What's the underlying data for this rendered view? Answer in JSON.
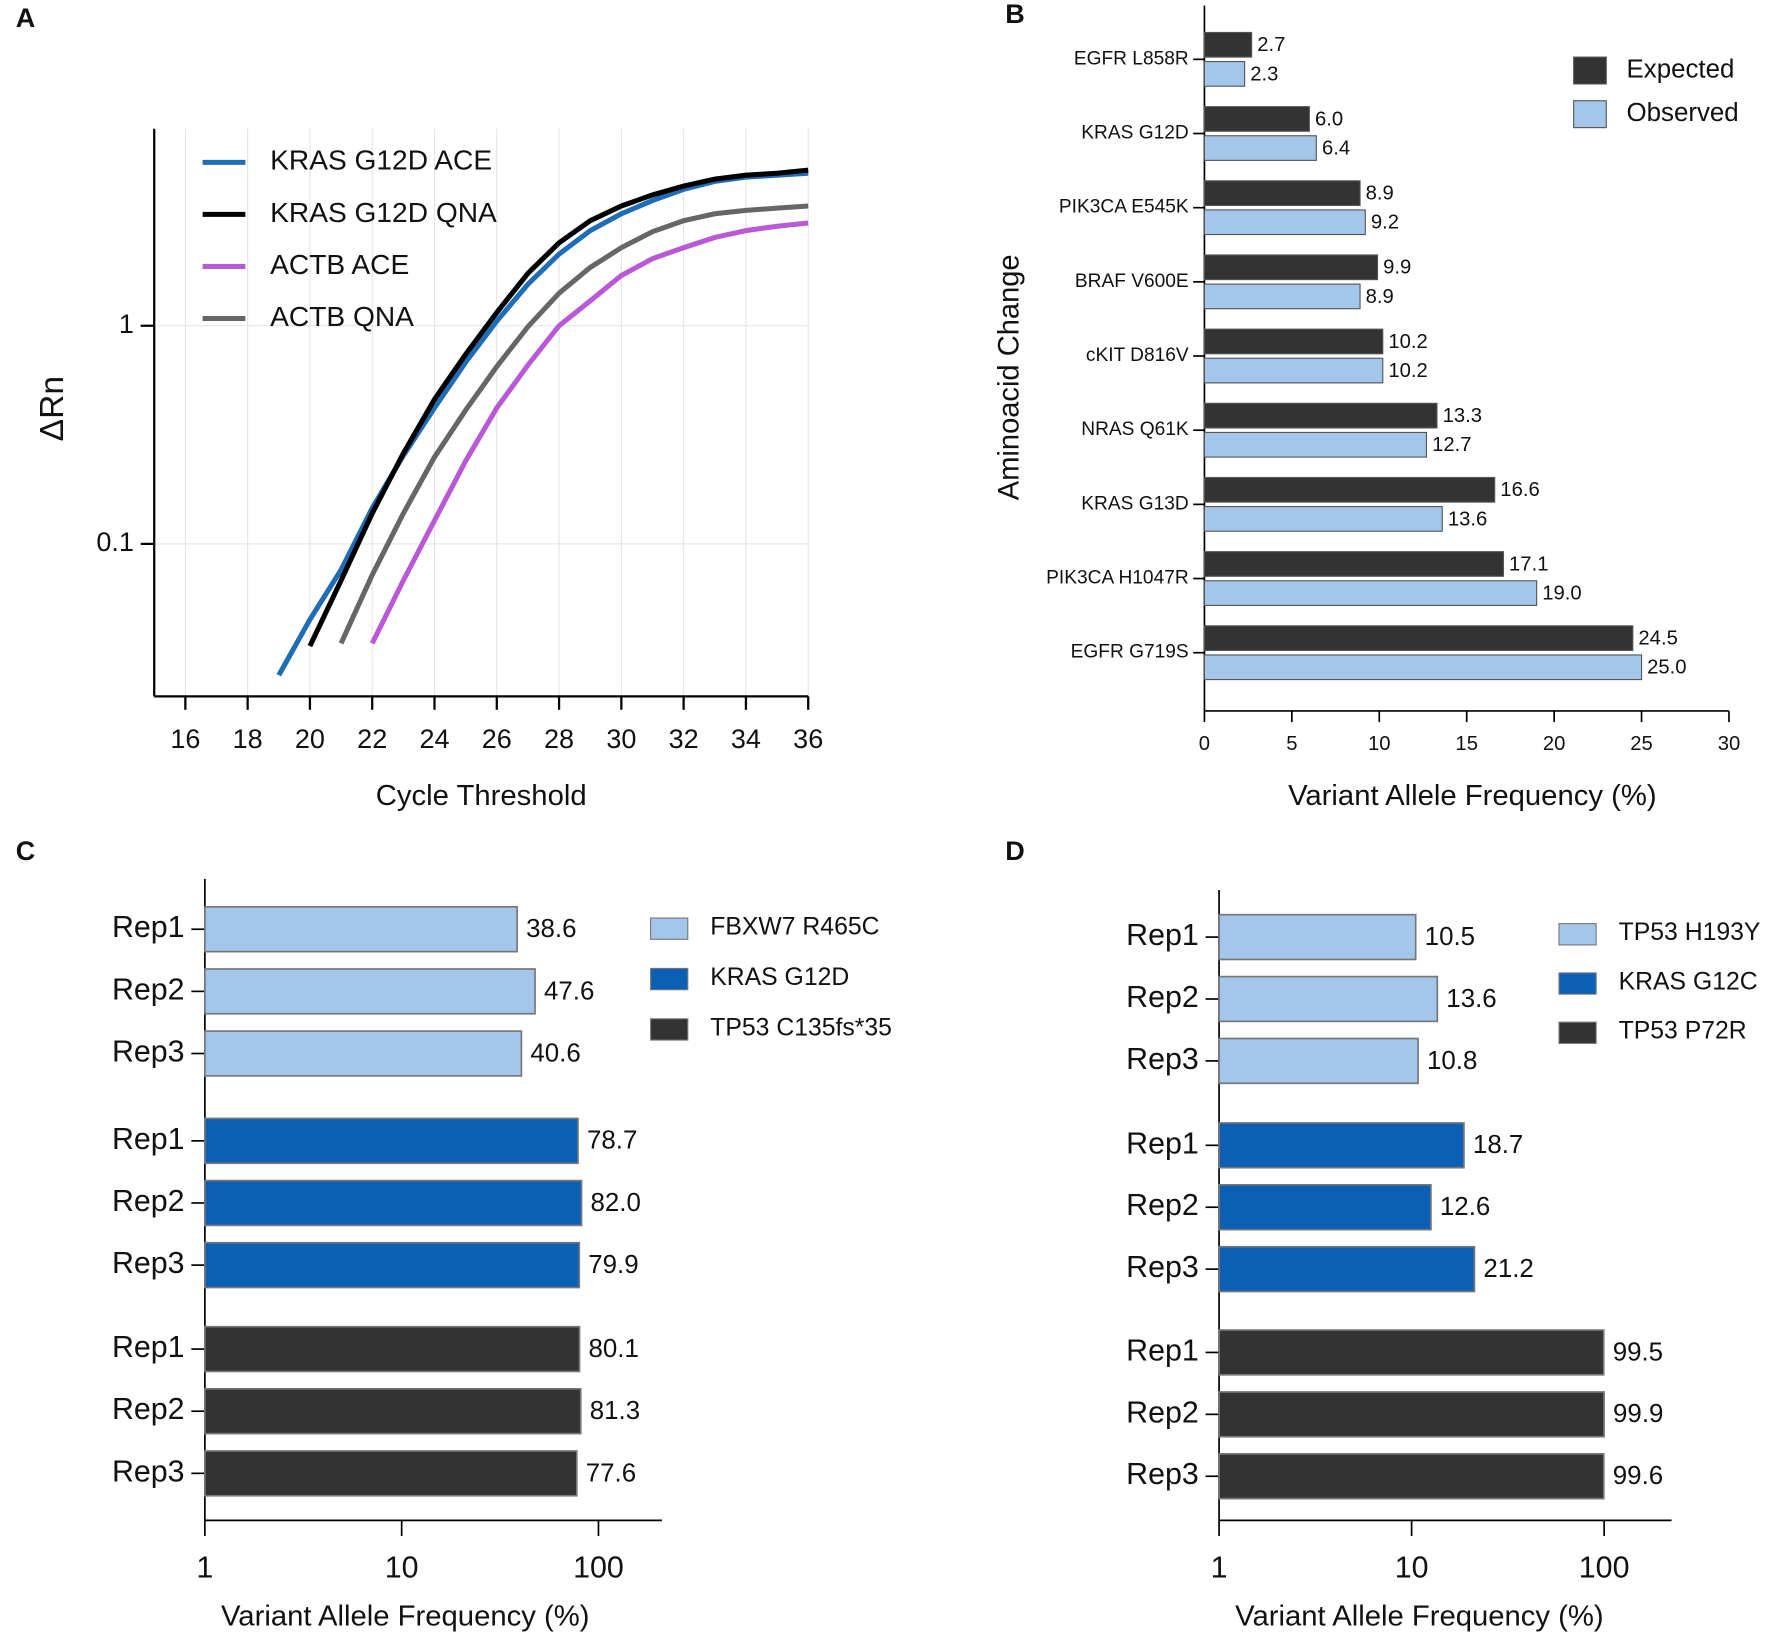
{
  "chart_data": [
    {
      "label": "A",
      "type": "line",
      "y_label": "ΔRn",
      "x_label": "Cycle Threshold",
      "log_y": true,
      "grid": true,
      "legend": "upper left",
      "x": [
        19,
        20,
        21,
        22,
        23,
        24,
        25,
        26,
        27,
        28,
        29,
        30,
        31,
        32,
        33,
        34,
        35,
        36
      ],
      "series": [
        {
          "name": "KRAS G12D ACE",
          "color": "#1f6db5",
          "values": [
            0.025,
            0.045,
            0.076,
            0.146,
            0.254,
            0.42,
            0.68,
            1.05,
            1.55,
            2.13,
            2.73,
            3.26,
            3.75,
            4.22,
            4.59,
            4.8,
            4.9,
            5.0
          ]
        },
        {
          "name": "KRAS G12D QNA",
          "color": "#000000",
          "values": [
            null,
            0.034,
            0.068,
            0.138,
            0.26,
            0.46,
            0.74,
            1.15,
            1.74,
            2.4,
            3.03,
            3.54,
            3.98,
            4.37,
            4.7,
            4.9,
            5.0,
            5.17
          ]
        },
        {
          "name": "ACTB ACE",
          "color": "#b959d6",
          "values": [
            null,
            null,
            null,
            0.035,
            0.068,
            0.128,
            0.24,
            0.42,
            0.66,
            1.0,
            1.3,
            1.7,
            2.03,
            2.28,
            2.54,
            2.73,
            2.86,
            2.96
          ]
        },
        {
          "name": "ACTB QNA",
          "color": "#666666",
          "values": [
            null,
            null,
            0.035,
            0.072,
            0.138,
            0.25,
            0.41,
            0.65,
            0.99,
            1.41,
            1.85,
            2.28,
            2.7,
            3.03,
            3.26,
            3.38,
            3.46,
            3.54
          ]
        }
      ],
      "xlim": [
        15,
        36
      ],
      "xticks": [
        16,
        18,
        20,
        22,
        24,
        26,
        28,
        30,
        32,
        34,
        36
      ],
      "ylim": [
        0.02,
        8
      ],
      "yticks": [
        0.1,
        1
      ]
    },
    {
      "label": "B",
      "type": "grouped_hbar",
      "y_label": "Aminoacid Change",
      "x_label": "Variant Allele Frequency (%)",
      "legend": "upper right",
      "categories": [
        "EGFR L858R",
        "KRAS G12D",
        "PIK3CA E545K",
        "BRAF V600E",
        "cKIT D816V",
        "NRAS Q61K",
        "KRAS G13D",
        "PIK3CA H1047R",
        "EGFR G719S"
      ],
      "series": [
        {
          "name": "Expected",
          "color": "#333333",
          "values": [
            2.7,
            6.0,
            8.9,
            9.9,
            10.2,
            13.3,
            16.6,
            17.1,
            24.5
          ],
          "value_labels": [
            "2.7",
            "6.0",
            "8.9",
            "9.9",
            "10.2",
            "13.3",
            "16.6",
            "17.1",
            "24.5"
          ]
        },
        {
          "name": "Observed",
          "color": "#a3c6ea",
          "values": [
            2.3,
            6.4,
            9.2,
            8.9,
            10.2,
            12.7,
            13.6,
            19.0,
            25.0
          ],
          "value_labels": [
            "2.3",
            "6.4",
            "9.2",
            "8.9",
            "10.2",
            "12.7",
            "13.6",
            "19.0",
            "25.0"
          ]
        }
      ],
      "xlim": [
        0,
        30
      ],
      "xticks": [
        0,
        5,
        10,
        15,
        20,
        25,
        30
      ]
    },
    {
      "label": "C",
      "type": "hbar_groups",
      "x_label": "Variant Allele Frequency (%)",
      "log_x": true,
      "legend": "upper right",
      "categories": [
        "Rep1",
        "Rep2",
        "Rep3"
      ],
      "series": [
        {
          "name": "FBXW7 R465C",
          "color": "#a3c6ea",
          "values": [
            38.6,
            47.6,
            40.6
          ],
          "value_labels": [
            "38.6",
            "47.6",
            "40.6"
          ]
        },
        {
          "name": "KRAS G12D",
          "color": "#0b5fb4",
          "values": [
            78.7,
            82.0,
            79.9
          ],
          "value_labels": [
            "78.7",
            "82.0",
            "79.9"
          ]
        },
        {
          "name": "TP53 C135fs*35",
          "color": "#333333",
          "values": [
            80.1,
            81.3,
            77.6
          ],
          "value_labels": [
            "80.1",
            "81.3",
            "77.6"
          ]
        }
      ],
      "xlim": [
        1,
        210
      ],
      "xticks": [
        1,
        10,
        100
      ]
    },
    {
      "label": "D",
      "type": "hbar_groups",
      "x_label": "Variant Allele Frequency (%)",
      "log_x": true,
      "legend": "upper right",
      "categories": [
        "Rep1",
        "Rep2",
        "Rep3"
      ],
      "series": [
        {
          "name": "TP53 H193Y",
          "color": "#a3c6ea",
          "values": [
            10.5,
            13.6,
            10.8
          ],
          "value_labels": [
            "10.5",
            "13.6",
            "10.8"
          ]
        },
        {
          "name": "KRAS G12C",
          "color": "#0b5fb4",
          "values": [
            18.7,
            12.6,
            21.2
          ],
          "value_labels": [
            "18.7",
            "12.6",
            "21.2"
          ]
        },
        {
          "name": "TP53 P72R",
          "color": "#333333",
          "values": [
            99.5,
            99.9,
            99.6
          ],
          "value_labels": [
            "99.5",
            "99.9",
            "99.6"
          ]
        }
      ],
      "xlim": [
        1,
        224
      ],
      "xticks": [
        1,
        10,
        100
      ]
    }
  ]
}
